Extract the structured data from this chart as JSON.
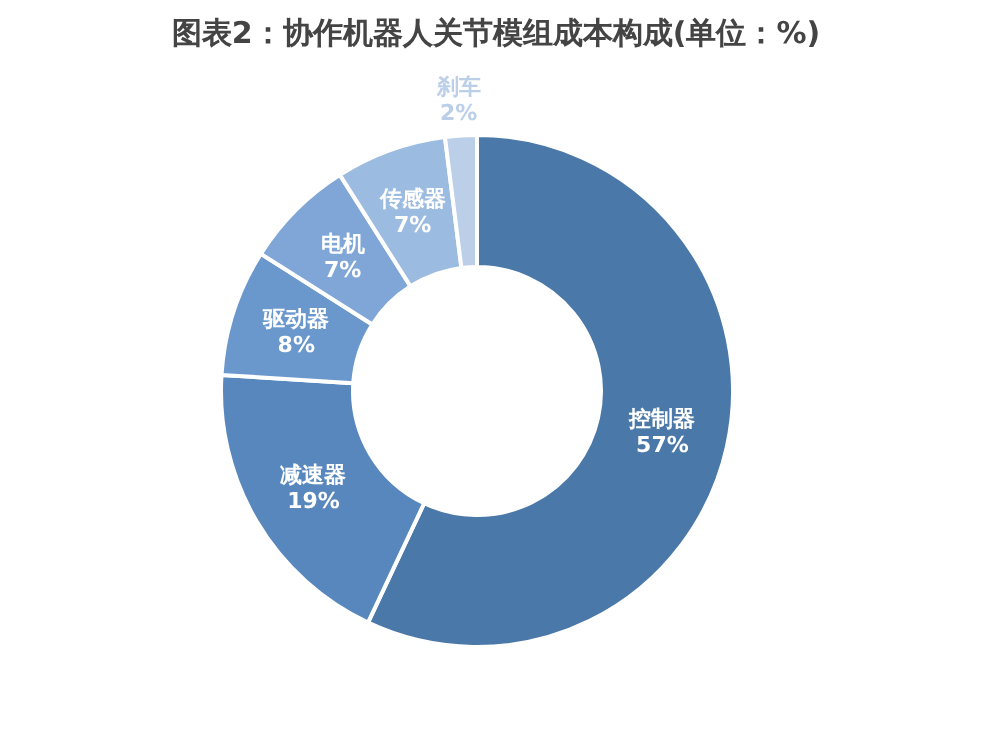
{
  "chart_data": {
    "type": "donut",
    "title": "图表2：协作机器人关节模组成本构成(单位：%)",
    "categories": [
      "控制器",
      "减速器",
      "驱动器",
      "电机",
      "传感器",
      "刹车"
    ],
    "values": [
      57,
      19,
      8,
      7,
      7,
      2
    ],
    "colors": [
      "#4a78a8",
      "#5787bd",
      "#6a97cc",
      "#7fa6d6",
      "#9cbbe0",
      "#bccfe8"
    ],
    "value_labels": [
      "57%",
      "19%",
      "8%",
      "7%",
      "7%",
      "2%"
    ]
  }
}
